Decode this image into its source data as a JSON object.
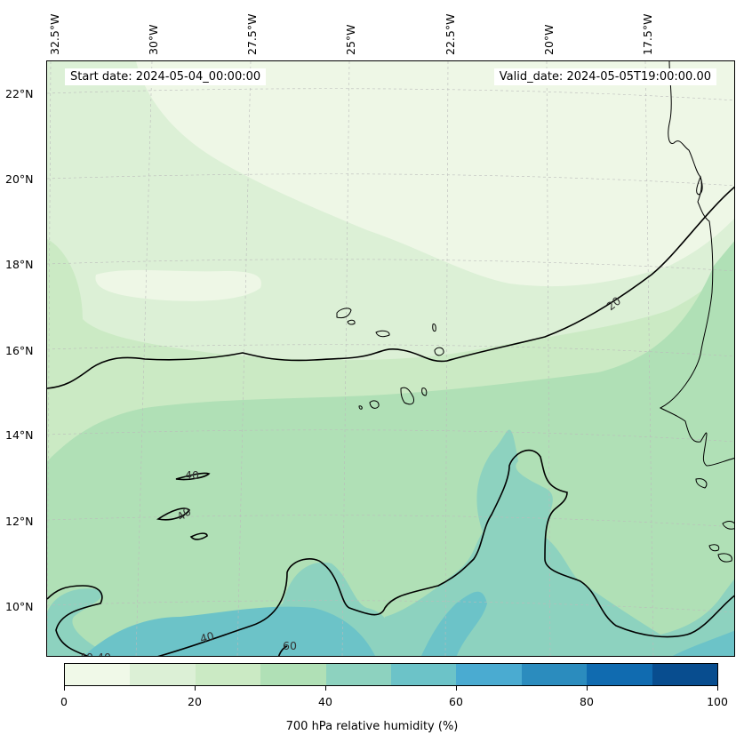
{
  "header": {
    "start_date": "Start date: 2024-05-04_00:00:00",
    "valid_date": "Valid_date: 2024-05-05T19:00:00.00"
  },
  "axes": {
    "longitude_labels": [
      "32.5°W",
      "30°W",
      "27.5°W",
      "25°W",
      "22.5°W",
      "20°W",
      "17.5°W"
    ],
    "latitude_labels": [
      "22°N",
      "20°N",
      "18°N",
      "16°N",
      "14°N",
      "12°N",
      "10°N"
    ]
  },
  "contours": {
    "labels": [
      "20",
      "40",
      "40",
      "40",
      "40",
      "40",
      "60"
    ]
  },
  "colorbar": {
    "label": "700 hPa relative humidity (%)",
    "ticks": [
      "0",
      "20",
      "40",
      "60",
      "80",
      "100"
    ],
    "colors": [
      "#f0f9e8",
      "#dcf0d6",
      "#cbeac4",
      "#b0e0b6",
      "#8dd2bf",
      "#6cc3c8",
      "#4aabd1",
      "#2b8cbe",
      "#106bb0",
      "#084d8f"
    ]
  },
  "map_colors": {
    "coastline": "#000000",
    "contour": "#000000",
    "gridline": "#bbbbbb"
  }
}
